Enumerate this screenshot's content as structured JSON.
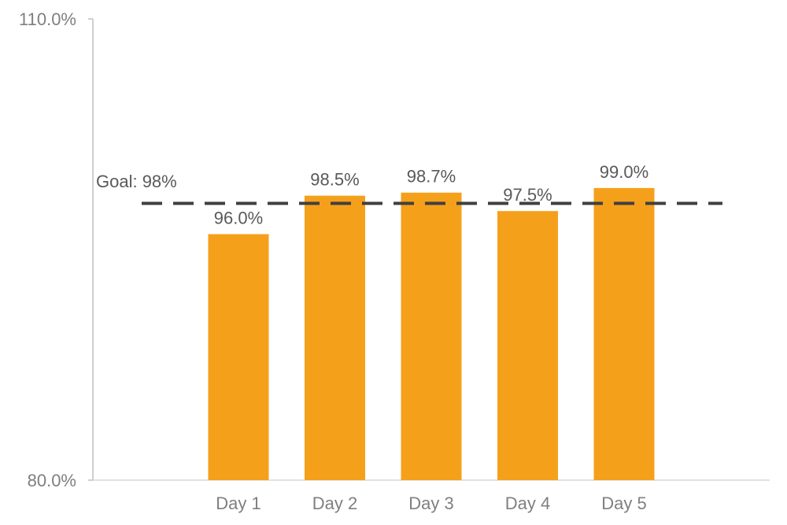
{
  "chart_data": {
    "type": "bar",
    "categories": [
      "Day 1",
      "Day 2",
      "Day 3",
      "Day 4",
      "Day 5"
    ],
    "values": [
      96.0,
      98.5,
      98.7,
      97.5,
      99.0
    ],
    "value_labels": [
      "96.0%",
      "98.5%",
      "98.7%",
      "97.5%",
      "99.0%"
    ],
    "ylim": [
      80,
      110
    ],
    "y_tick_labels": [
      "80.0%",
      "110.0%"
    ],
    "y_ticks": [
      80,
      110
    ],
    "bar_color": "#f5a01a",
    "grid": false,
    "goal": {
      "value": 98,
      "label": "Goal: 98%",
      "color": "#404040",
      "style": "dashed"
    }
  }
}
